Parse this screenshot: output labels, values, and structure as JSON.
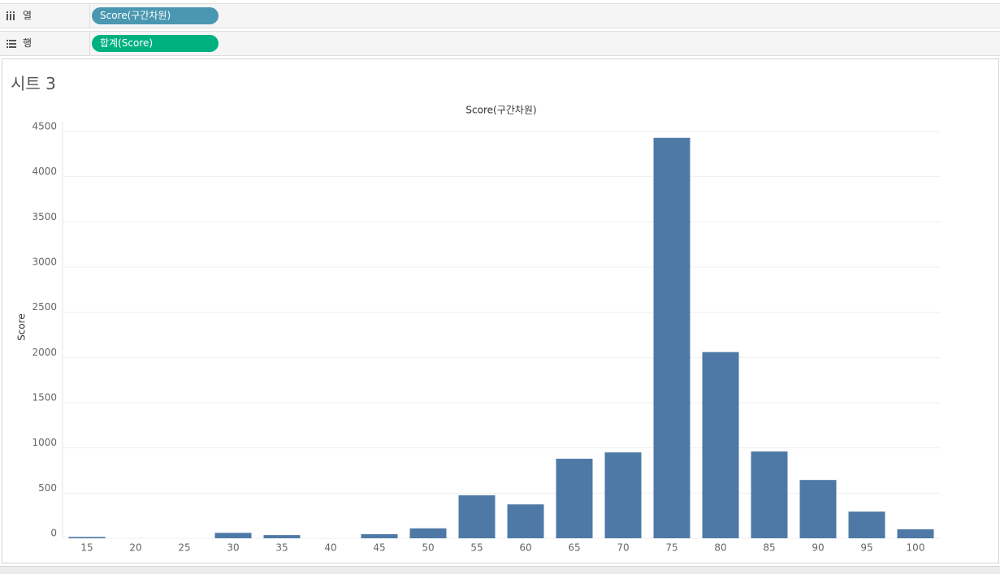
{
  "shelves": {
    "columns": {
      "label": "열",
      "pill": "Score(구간차원)"
    },
    "rows": {
      "label": "행",
      "pill": "합계(Score)"
    }
  },
  "sheet_title": "시트 3",
  "chart_data": {
    "type": "bar",
    "title": "Score(구간차원)",
    "y_label": "Score",
    "categories": [
      "15",
      "20",
      "25",
      "30",
      "35",
      "40",
      "45",
      "50",
      "55",
      "60",
      "65",
      "70",
      "75",
      "80",
      "85",
      "90",
      "95",
      "100"
    ],
    "values": [
      15,
      0,
      0,
      60,
      35,
      0,
      45,
      110,
      475,
      375,
      880,
      950,
      4430,
      2060,
      960,
      645,
      295,
      100
    ],
    "color": "#4e79a7",
    "ylim": [
      0,
      4600
    ],
    "yticks": [
      0,
      500,
      1000,
      1500,
      2000,
      2500,
      3000,
      3500,
      4000,
      4500
    ],
    "grid": true
  }
}
